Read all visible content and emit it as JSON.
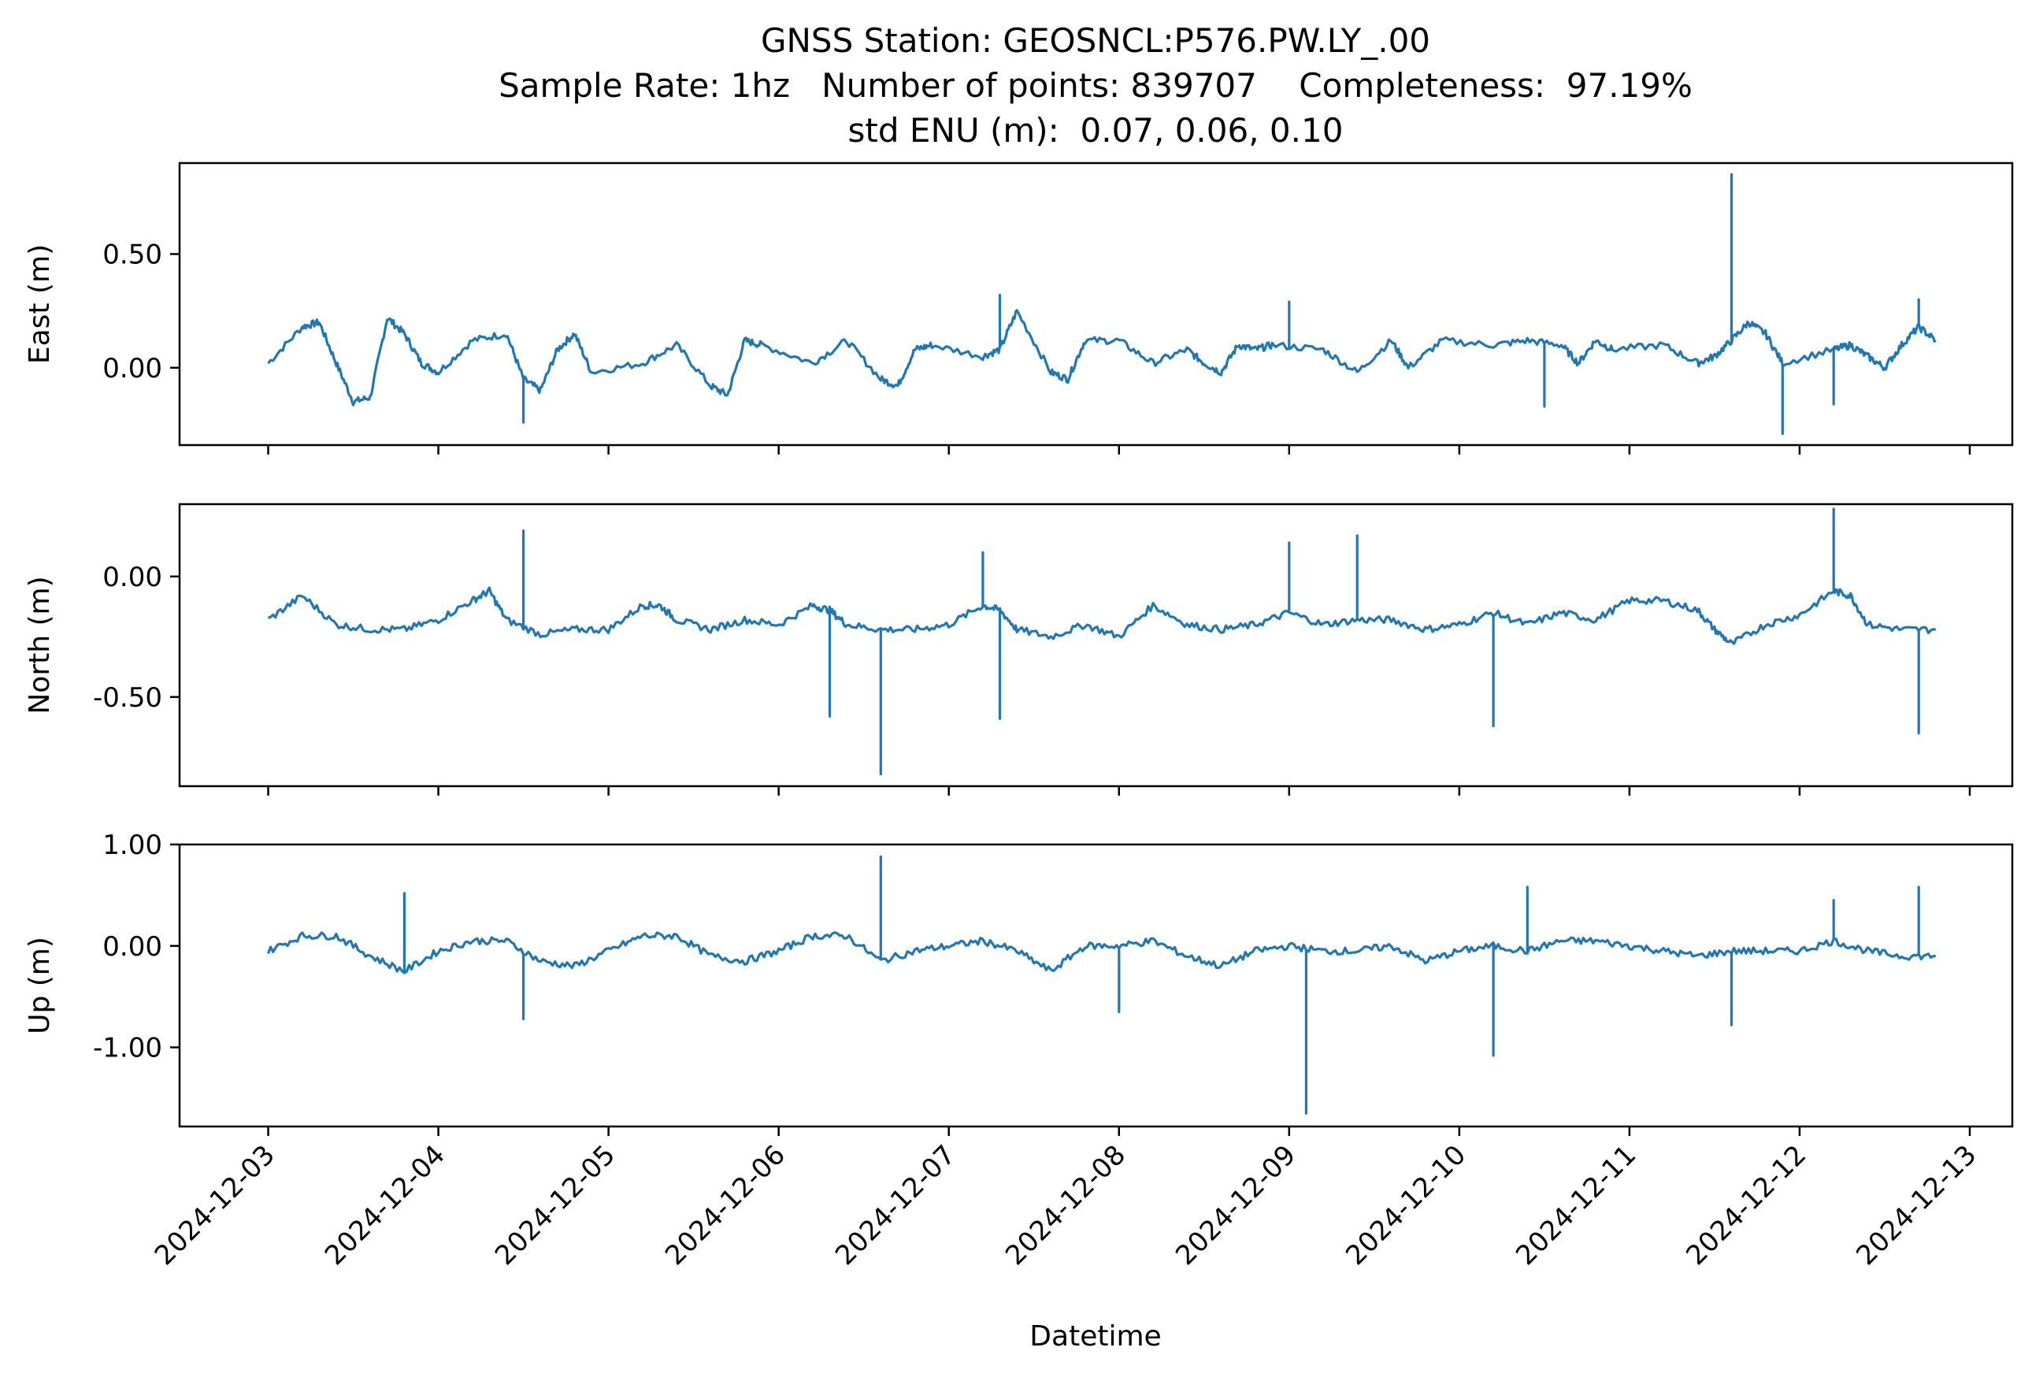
{
  "chart_data": {
    "type": "line",
    "title_lines": [
      "GNSS Station: GEOSNCL:P576.PW.LY_.00",
      "Sample Rate: 1hz   Number of points: 839707    Completeness:  97.19%",
      "std ENU (m):  0.07, 0.06, 0.10"
    ],
    "xlabel": "Datetime",
    "x_ticks": [
      "2024-12-03",
      "2024-12-04",
      "2024-12-05",
      "2024-12-06",
      "2024-12-07",
      "2024-12-08",
      "2024-12-09",
      "2024-12-10",
      "2024-12-11",
      "2024-12-12",
      "2024-12-13"
    ],
    "xlim": [
      "2024-12-02T11:30",
      "2024-12-13T06:00"
    ],
    "series_color": "#1f77b4",
    "panels": [
      {
        "name": "east",
        "ylabel": "East (m)",
        "ylim": [
          -0.34,
          0.9
        ],
        "y_ticks": [
          {
            "value": 0.5,
            "label": "0.50"
          },
          {
            "value": 0.0,
            "label": "0.00"
          }
        ],
        "t": [
          "12-03 00:00",
          "12-03 04:48",
          "12-03 07:12",
          "12-03 09:36",
          "12-03 12:00",
          "12-03 14:24",
          "12-03 16:48",
          "12-03 19:12",
          "12-03 21:36",
          "12-04 00:00",
          "12-04 04:48",
          "12-04 09:36",
          "12-04 12:00",
          "12-04 14:24",
          "12-04 16:48",
          "12-04 19:12",
          "12-04 21:36",
          "12-05 04:48",
          "12-05 09:36",
          "12-05 14:24",
          "12-05 16:48",
          "12-05 19:12",
          "12-05 21:36",
          "12-06 04:48",
          "12-06 09:36",
          "12-06 14:24",
          "12-06 16:48",
          "12-06 19:12",
          "12-06 21:36",
          "12-07 04:48",
          "12-07 07:12",
          "12-07 09:36",
          "12-07 14:24",
          "12-07 16:48",
          "12-07 19:12",
          "12-08 00:00",
          "12-08 04:48",
          "12-08 09:36",
          "12-08 12:00",
          "12-08 14:24",
          "12-08 16:48",
          "12-08 19:12",
          "12-08 21:36",
          "12-09 04:48",
          "12-09 09:36",
          "12-09 14:24",
          "12-09 16:48",
          "12-09 21:36",
          "12-10 04:48",
          "12-10 09:36",
          "12-10 14:24",
          "12-10 16:48",
          "12-10 19:12",
          "12-10 21:36",
          "12-11 04:48",
          "12-11 09:36",
          "12-11 12:00",
          "12-11 14:24",
          "12-11 16:48",
          "12-11 19:12",
          "12-11 21:36",
          "12-12 04:48",
          "12-12 07:12",
          "12-12 09:36",
          "12-12 12:00",
          "12-12 14:24",
          "12-12 16:48",
          "12-12 19:12"
        ],
        "values": [
          0.02,
          0.18,
          0.2,
          0.02,
          -0.15,
          -0.13,
          0.22,
          0.15,
          0.02,
          -0.02,
          0.12,
          0.15,
          -0.05,
          -0.1,
          0.08,
          0.15,
          -0.02,
          0.02,
          0.1,
          -0.08,
          -0.12,
          0.12,
          0.1,
          0.02,
          0.12,
          -0.05,
          -0.08,
          0.08,
          0.1,
          0.05,
          0.08,
          0.25,
          -0.02,
          -0.05,
          0.12,
          0.12,
          0.02,
          0.08,
          0.02,
          -0.02,
          0.1,
          0.08,
          0.1,
          0.08,
          -0.02,
          0.12,
          0.0,
          0.12,
          0.1,
          0.12,
          0.1,
          0.02,
          0.12,
          0.08,
          0.1,
          0.02,
          0.05,
          0.12,
          0.2,
          0.15,
          0.02,
          0.08,
          0.1,
          0.05,
          0.0,
          0.1,
          0.18,
          0.12
        ],
        "spikes": [
          {
            "t": "12-04 12:00",
            "v": -0.24
          },
          {
            "t": "12-07 07:12",
            "v": 0.32
          },
          {
            "t": "12-09 00:00",
            "v": 0.29
          },
          {
            "t": "12-10 12:00",
            "v": -0.17
          },
          {
            "t": "12-11 14:24",
            "v": 0.85
          },
          {
            "t": "12-11 21:36",
            "v": -0.29
          },
          {
            "t": "12-12 04:48",
            "v": -0.16
          },
          {
            "t": "12-12 16:48",
            "v": 0.3
          }
        ]
      },
      {
        "name": "north",
        "ylabel": "North (m)",
        "ylim": [
          -0.87,
          0.3
        ],
        "y_ticks": [
          {
            "value": 0.0,
            "label": "0.00"
          },
          {
            "value": -0.5,
            "label": "-0.50"
          }
        ],
        "t": [
          "12-03 00:00",
          "12-03 04:48",
          "12-03 09:36",
          "12-03 14:24",
          "12-03 19:12",
          "12-04 00:00",
          "12-04 04:48",
          "12-04 07:12",
          "12-04 09:36",
          "12-04 14:24",
          "12-04 19:12",
          "12-05 00:00",
          "12-05 04:48",
          "12-05 07:12",
          "12-05 09:36",
          "12-05 14:24",
          "12-05 19:12",
          "12-06 00:00",
          "12-06 04:48",
          "12-06 07:12",
          "12-06 09:36",
          "12-06 14:24",
          "12-06 19:12",
          "12-07 00:00",
          "12-07 04:48",
          "12-07 07:12",
          "12-07 09:36",
          "12-07 14:24",
          "12-07 19:12",
          "12-08 00:00",
          "12-08 04:48",
          "12-08 09:36",
          "12-08 14:24",
          "12-08 19:12",
          "12-09 00:00",
          "12-09 04:48",
          "12-09 09:36",
          "12-09 14:24",
          "12-09 19:12",
          "12-10 00:00",
          "12-10 04:48",
          "12-10 09:36",
          "12-10 14:24",
          "12-10 19:12",
          "12-11 00:00",
          "12-11 04:48",
          "12-11 09:36",
          "12-11 12:00",
          "12-11 14:24",
          "12-11 19:12",
          "12-12 00:00",
          "12-12 04:48",
          "12-12 07:12",
          "12-12 09:36",
          "12-12 14:24",
          "12-12 19:12"
        ],
        "values": [
          -0.18,
          -0.08,
          -0.2,
          -0.22,
          -0.22,
          -0.18,
          -0.1,
          -0.06,
          -0.18,
          -0.24,
          -0.22,
          -0.22,
          -0.12,
          -0.12,
          -0.18,
          -0.22,
          -0.18,
          -0.2,
          -0.12,
          -0.14,
          -0.2,
          -0.22,
          -0.22,
          -0.2,
          -0.12,
          -0.14,
          -0.22,
          -0.25,
          -0.2,
          -0.25,
          -0.12,
          -0.2,
          -0.22,
          -0.2,
          -0.15,
          -0.2,
          -0.18,
          -0.18,
          -0.22,
          -0.2,
          -0.15,
          -0.2,
          -0.15,
          -0.18,
          -0.1,
          -0.1,
          -0.14,
          -0.22,
          -0.28,
          -0.2,
          -0.16,
          -0.06,
          -0.08,
          -0.2,
          -0.22,
          -0.22
        ],
        "spikes": [
          {
            "t": "12-04 12:00",
            "v": 0.19
          },
          {
            "t": "12-06 07:12",
            "v": -0.58
          },
          {
            "t": "12-06 14:24",
            "v": -0.82
          },
          {
            "t": "12-07 04:48",
            "v": 0.1
          },
          {
            "t": "12-07 07:12",
            "v": -0.59
          },
          {
            "t": "12-09 00:00",
            "v": 0.14
          },
          {
            "t": "12-09 09:36",
            "v": 0.17
          },
          {
            "t": "12-10 04:48",
            "v": -0.62
          },
          {
            "t": "12-12 04:48",
            "v": 0.28
          },
          {
            "t": "12-12 16:48",
            "v": -0.65
          }
        ]
      },
      {
        "name": "up",
        "ylabel": "Up (m)",
        "ylim": [
          -1.78,
          1.0
        ],
        "y_ticks": [
          {
            "value": 1.0,
            "label": "1.00"
          },
          {
            "value": 0.0,
            "label": "0.00"
          },
          {
            "value": -1.0,
            "label": "-1.00"
          }
        ],
        "t": [
          "12-03 00:00",
          "12-03 04:48",
          "12-03 09:36",
          "12-03 14:24",
          "12-03 19:12",
          "12-04 00:00",
          "12-04 04:48",
          "12-04 09:36",
          "12-04 14:24",
          "12-04 19:12",
          "12-05 00:00",
          "12-05 04:48",
          "12-05 09:36",
          "12-05 14:24",
          "12-05 19:12",
          "12-06 00:00",
          "12-06 04:48",
          "12-06 09:36",
          "12-06 14:24",
          "12-06 19:12",
          "12-07 00:00",
          "12-07 04:48",
          "12-07 09:36",
          "12-07 14:24",
          "12-07 19:12",
          "12-08 00:00",
          "12-08 04:48",
          "12-08 09:36",
          "12-08 14:24",
          "12-08 19:12",
          "12-09 00:00",
          "12-09 04:48",
          "12-09 09:36",
          "12-09 14:24",
          "12-09 19:12",
          "12-10 00:00",
          "12-10 04:48",
          "12-10 09:36",
          "12-10 14:24",
          "12-10 19:12",
          "12-11 00:00",
          "12-11 04:48",
          "12-11 09:36",
          "12-11 14:24",
          "12-11 19:12",
          "12-12 00:00",
          "12-12 04:48",
          "12-12 09:36",
          "12-12 14:24",
          "12-12 19:12"
        ],
        "values": [
          -0.05,
          0.1,
          0.1,
          -0.1,
          -0.25,
          -0.05,
          0.05,
          0.05,
          -0.15,
          -0.2,
          -0.05,
          0.1,
          0.1,
          -0.1,
          -0.15,
          -0.05,
          0.1,
          0.1,
          -0.15,
          -0.05,
          0.0,
          0.05,
          -0.05,
          -0.25,
          0.0,
          0.0,
          0.05,
          -0.1,
          -0.2,
          -0.05,
          0.0,
          -0.05,
          -0.05,
          0.0,
          -0.15,
          -0.05,
          0.0,
          -0.05,
          0.05,
          0.05,
          0.0,
          -0.05,
          -0.1,
          -0.05,
          -0.05,
          -0.05,
          0.05,
          -0.05,
          -0.1,
          -0.1
        ],
        "spikes": [
          {
            "t": "12-03 19:12",
            "v": 0.52
          },
          {
            "t": "12-04 12:00",
            "v": -0.72
          },
          {
            "t": "12-06 14:24",
            "v": 0.88
          },
          {
            "t": "12-08 00:00",
            "v": -0.65
          },
          {
            "t": "12-09 02:24",
            "v": -1.65
          },
          {
            "t": "12-10 04:48",
            "v": -1.08
          },
          {
            "t": "12-10 09:36",
            "v": 0.58
          },
          {
            "t": "12-11 14:24",
            "v": -0.78
          },
          {
            "t": "12-12 04:48",
            "v": 0.45
          },
          {
            "t": "12-12 16:48",
            "v": 0.58
          }
        ]
      }
    ]
  }
}
